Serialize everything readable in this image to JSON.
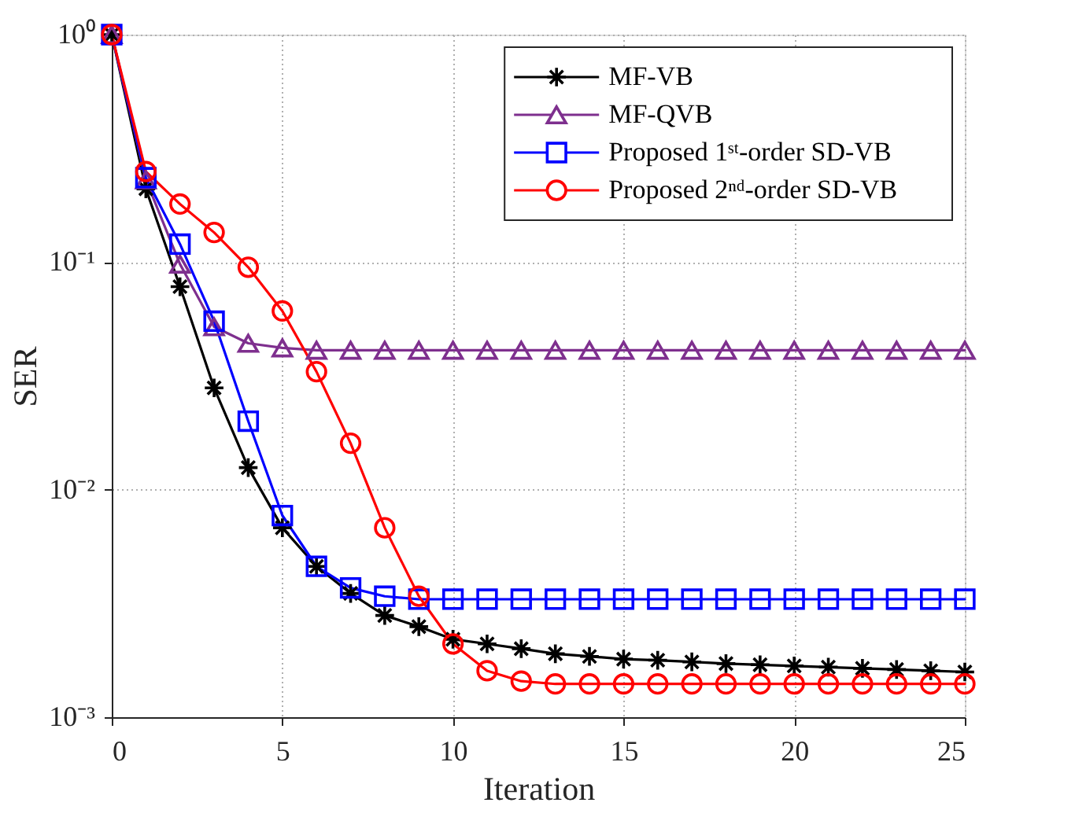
{
  "chart_data": {
    "type": "line",
    "xlabel": "Iteration",
    "ylabel": "SER",
    "log": "y",
    "x": [
      0,
      1,
      2,
      3,
      4,
      5,
      6,
      7,
      8,
      9,
      10,
      11,
      12,
      13,
      14,
      15,
      16,
      17,
      18,
      19,
      20,
      21,
      22,
      23,
      24,
      25
    ],
    "xlim": [
      0,
      25
    ],
    "xticks": [
      0,
      5,
      10,
      15,
      20,
      25
    ],
    "ylim": [
      0.001,
      1
    ],
    "yticks": [
      {
        "value": 1,
        "label": "10⁰"
      },
      {
        "value": 0.1,
        "label": "10⁻¹"
      },
      {
        "value": 0.01,
        "label": "10⁻²"
      },
      {
        "value": 0.001,
        "label": "10⁻³"
      }
    ],
    "grid": true,
    "legend": "top right",
    "line_style": "solid",
    "series": [
      {
        "name": "MF-VB",
        "color": "#000000",
        "marker": "cross",
        "values": [
          1,
          0.21,
          0.078,
          0.028,
          0.0125,
          0.0068,
          0.0046,
          0.0035,
          0.0028,
          0.0025,
          0.0022,
          0.0021,
          0.002,
          0.0019,
          0.00185,
          0.0018,
          0.00178,
          0.00175,
          0.00172,
          0.0017,
          0.00168,
          0.00166,
          0.00164,
          0.00162,
          0.0016,
          0.00158
        ]
      },
      {
        "name": "MF-QVB",
        "color": "#7e2f8e",
        "marker": "triangle",
        "values": [
          1,
          0.23,
          0.098,
          0.052,
          0.044,
          0.042,
          0.041,
          0.041,
          0.041,
          0.041,
          0.041,
          0.041,
          0.041,
          0.041,
          0.041,
          0.041,
          0.041,
          0.041,
          0.041,
          0.041,
          0.041,
          0.041,
          0.041,
          0.041,
          0.041,
          0.041
        ]
      },
      {
        "name": "Proposed 1ˢᵗ-order SD-VB",
        "color": "#0000ff",
        "marker": "square",
        "values": [
          1,
          0.235,
          0.12,
          0.055,
          0.02,
          0.0077,
          0.0046,
          0.0037,
          0.0034,
          0.0033,
          0.0033,
          0.0033,
          0.0033,
          0.0033,
          0.0033,
          0.0033,
          0.0033,
          0.0033,
          0.0033,
          0.0033,
          0.0033,
          0.0033,
          0.0033,
          0.0033,
          0.0033,
          0.0033
        ]
      },
      {
        "name": "Proposed 2ⁿᵈ-order SD-VB",
        "color": "#ff0000",
        "marker": "circle",
        "values": [
          1,
          0.25,
          0.18,
          0.135,
          0.095,
          0.061,
          0.033,
          0.016,
          0.0068,
          0.0034,
          0.0021,
          0.0016,
          0.00144,
          0.0014,
          0.0014,
          0.0014,
          0.0014,
          0.0014,
          0.0014,
          0.0014,
          0.0014,
          0.0014,
          0.0014,
          0.0014,
          0.0014,
          0.0014
        ]
      }
    ]
  }
}
